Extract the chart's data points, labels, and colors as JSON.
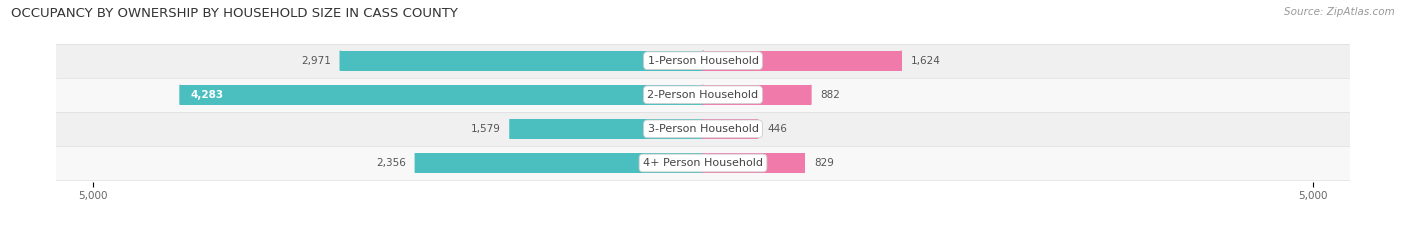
{
  "title": "OCCUPANCY BY OWNERSHIP BY HOUSEHOLD SIZE IN CASS COUNTY",
  "source": "Source: ZipAtlas.com",
  "categories": [
    "1-Person Household",
    "2-Person Household",
    "3-Person Household",
    "4+ Person Household"
  ],
  "owner_values": [
    2971,
    4283,
    1579,
    2356
  ],
  "renter_values": [
    1624,
    882,
    446,
    829
  ],
  "max_val": 5000,
  "owner_color": "#4BBFBF",
  "renter_color": "#F07AAA",
  "row_bg_colors": [
    "#F0F0F0",
    "#F8F8F8",
    "#F0F0F0",
    "#F8F8F8"
  ],
  "bar_height": 0.58,
  "title_fontsize": 9.5,
  "value_fontsize": 7.5,
  "axis_tick_fontsize": 7.5,
  "legend_fontsize": 8,
  "source_fontsize": 7.5,
  "background_color": "#FFFFFF",
  "label_color_outside": "#555555",
  "label_color_inside": "#FFFFFF"
}
